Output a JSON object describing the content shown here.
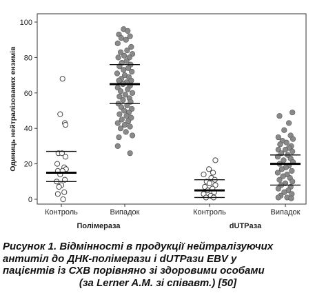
{
  "chart_data": {
    "type": "scatter",
    "ylabel": "Одиниць нейтралізованих ензимів",
    "xlabel": "",
    "ylim": [
      0,
      100
    ],
    "yticks": [
      0,
      20,
      40,
      60,
      80,
      100
    ],
    "grid": false,
    "legend": "none",
    "groups": [
      {
        "label": "Полімераза",
        "categories": [
          "Контроль",
          "Випадок"
        ]
      },
      {
        "label": "dUTPаза",
        "categories": [
          "Контроль",
          "Випадок"
        ]
      }
    ],
    "series": [
      {
        "category": "Контроль",
        "group": "Полімераза",
        "marker": "open",
        "points": [
          [
            0.02,
            68
          ],
          [
            -0.02,
            48
          ],
          [
            0.06,
            43
          ],
          [
            0.07,
            42
          ],
          [
            -0.05,
            26
          ],
          [
            0.01,
            26
          ],
          [
            0.07,
            24
          ],
          [
            -0.07,
            20
          ],
          [
            0.05,
            18
          ],
          [
            0.08,
            17
          ],
          [
            -0.06,
            16
          ],
          [
            0.02,
            16
          ],
          [
            -0.02,
            14
          ],
          [
            0.06,
            11
          ],
          [
            -0.08,
            10
          ],
          [
            0.0,
            8
          ],
          [
            -0.04,
            7
          ],
          [
            0.05,
            4
          ],
          [
            -0.06,
            3
          ],
          [
            0.03,
            0
          ]
        ],
        "mean": 15,
        "sd_upper": 27,
        "sd_lower": 10
      },
      {
        "category": "Випадок",
        "group": "Полімераза",
        "marker": "filled",
        "points": [
          [
            -0.02,
            96
          ],
          [
            0.05,
            95
          ],
          [
            -0.1,
            93
          ],
          [
            0.09,
            92
          ],
          [
            -0.06,
            91
          ],
          [
            0.02,
            90
          ],
          [
            -0.12,
            88
          ],
          [
            0.11,
            86
          ],
          [
            0.04,
            84
          ],
          [
            -0.07,
            83
          ],
          [
            0.13,
            82
          ],
          [
            -0.01,
            81
          ],
          [
            0.08,
            80
          ],
          [
            -0.11,
            80
          ],
          [
            0.03,
            78
          ],
          [
            -0.05,
            77
          ],
          [
            0.1,
            76
          ],
          [
            -0.09,
            75
          ],
          [
            0.06,
            74
          ],
          [
            -0.02,
            73
          ],
          [
            0.12,
            72
          ],
          [
            -0.13,
            71
          ],
          [
            0.0,
            70
          ],
          [
            0.07,
            69
          ],
          [
            -0.06,
            68
          ],
          [
            0.11,
            67
          ],
          [
            -0.1,
            67
          ],
          [
            0.03,
            66
          ],
          [
            -0.03,
            65
          ],
          [
            0.09,
            64
          ],
          [
            -0.12,
            63
          ],
          [
            0.05,
            62
          ],
          [
            -0.07,
            61
          ],
          [
            0.13,
            60
          ],
          [
            0.01,
            59
          ],
          [
            -0.09,
            58
          ],
          [
            0.08,
            57
          ],
          [
            -0.03,
            56
          ],
          [
            0.1,
            55
          ],
          [
            -0.11,
            54
          ],
          [
            0.04,
            53
          ],
          [
            -0.06,
            52
          ],
          [
            0.12,
            51
          ],
          [
            -0.01,
            50
          ],
          [
            0.07,
            49
          ],
          [
            -0.09,
            48
          ],
          [
            0.03,
            47
          ],
          [
            0.11,
            46
          ],
          [
            -0.05,
            45
          ],
          [
            0.06,
            44
          ],
          [
            -0.12,
            43
          ],
          [
            0.0,
            42
          ],
          [
            0.09,
            41
          ],
          [
            -0.07,
            40
          ],
          [
            0.02,
            38
          ],
          [
            0.13,
            36
          ],
          [
            -0.1,
            35
          ],
          [
            -0.12,
            30
          ],
          [
            0.09,
            26
          ]
        ],
        "mean": 65,
        "sd_upper": 76,
        "sd_lower": 54
      },
      {
        "category": "Контроль",
        "group": "dUTPаза",
        "marker": "open",
        "points": [
          [
            0.1,
            22
          ],
          [
            -0.01,
            17
          ],
          [
            0.06,
            15
          ],
          [
            -0.1,
            14
          ],
          [
            0.03,
            12
          ],
          [
            0.09,
            11
          ],
          [
            -0.05,
            10
          ],
          [
            0.0,
            9
          ],
          [
            0.1,
            8
          ],
          [
            -0.08,
            7
          ],
          [
            0.05,
            6
          ],
          [
            -0.03,
            5
          ],
          [
            0.08,
            4
          ],
          [
            -0.1,
            3
          ],
          [
            0.02,
            2
          ],
          [
            -0.06,
            1
          ],
          [
            0.07,
            1
          ]
        ],
        "mean": 5,
        "sd_upper": 11,
        "sd_lower": 1
      },
      {
        "category": "Випадок",
        "group": "dUTPаза",
        "marker": "filled",
        "points": [
          [
            0.12,
            49
          ],
          [
            -0.1,
            47
          ],
          [
            0.06,
            43
          ],
          [
            -0.02,
            39
          ],
          [
            0.09,
            36
          ],
          [
            -0.12,
            35
          ],
          [
            0.13,
            34
          ],
          [
            -0.05,
            33
          ],
          [
            0.02,
            32
          ],
          [
            -0.09,
            31
          ],
          [
            0.1,
            30
          ],
          [
            0.06,
            29
          ],
          [
            -0.12,
            28
          ],
          [
            0.0,
            28
          ],
          [
            0.12,
            27
          ],
          [
            -0.07,
            26
          ],
          [
            0.04,
            25
          ],
          [
            -0.13,
            24
          ],
          [
            0.09,
            23
          ],
          [
            -0.03,
            22
          ],
          [
            0.13,
            21
          ],
          [
            -0.1,
            20
          ],
          [
            0.06,
            19
          ],
          [
            0.01,
            18
          ],
          [
            -0.06,
            17
          ],
          [
            0.11,
            16
          ],
          [
            -0.13,
            15
          ],
          [
            0.03,
            14
          ],
          [
            -0.04,
            13
          ],
          [
            0.08,
            12
          ],
          [
            -0.1,
            11
          ],
          [
            0.12,
            10
          ],
          [
            0.0,
            9
          ],
          [
            -0.07,
            8
          ],
          [
            0.09,
            7
          ],
          [
            -0.12,
            6
          ],
          [
            0.05,
            5
          ],
          [
            -0.02,
            4
          ],
          [
            0.11,
            3
          ],
          [
            -0.08,
            2
          ],
          [
            0.03,
            1
          ],
          [
            -0.12,
            1
          ],
          [
            0.1,
            0.5
          ]
        ],
        "mean": 20,
        "sd_upper": 25,
        "sd_lower": 8
      }
    ]
  },
  "caption": {
    "line1": "Рисунок 1. Відмінності в продукції нейтралізуючих",
    "line2": "антитіл до ДНК-полімерази і dUTPази EBV у",
    "line3": "пацієнтів із СХВ порівняно зі здоровими особами",
    "line4": "(за Lerner A.M. зі співавт.) [50]"
  }
}
